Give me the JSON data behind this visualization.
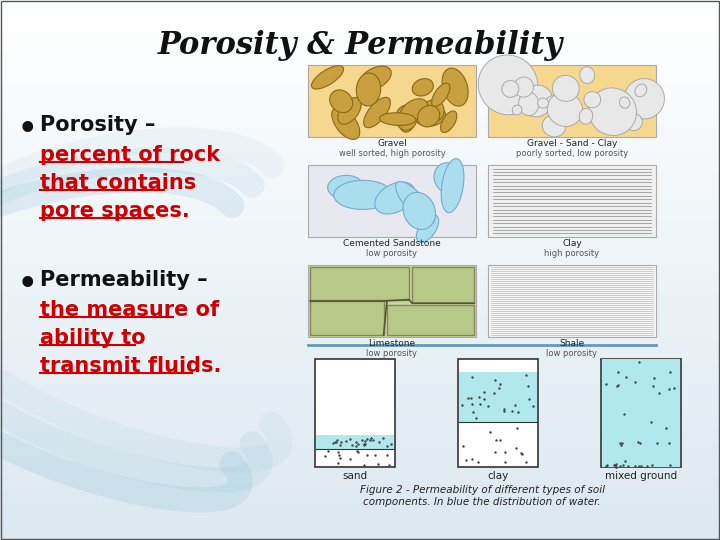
{
  "title": "Porosity & Permeability",
  "title_fontsize": 22,
  "title_fontstyle": "italic",
  "title_fontweight": "bold",
  "title_fontfamily": "serif",
  "bg_color_top": "#dce8f0",
  "bg_color_bottom": "#ffffff",
  "bullet1_bold": "Porosity –",
  "bullet1_underline": "percent of rock\nthat contains\npore spaces",
  "bullet1_end": ".",
  "bullet2_bold": "Permeability –",
  "bullet2_underline": "the measure of\nability to\ntransmit fluids",
  "bullet2_end": ".",
  "bullet_color": "#000000",
  "underline_color": "#cc0000",
  "figure_caption": "Figure 2 - Permeability of different types of soil\ncomponents. In blue the distribution of water.",
  "figure_caption_fontsize": 7.5
}
